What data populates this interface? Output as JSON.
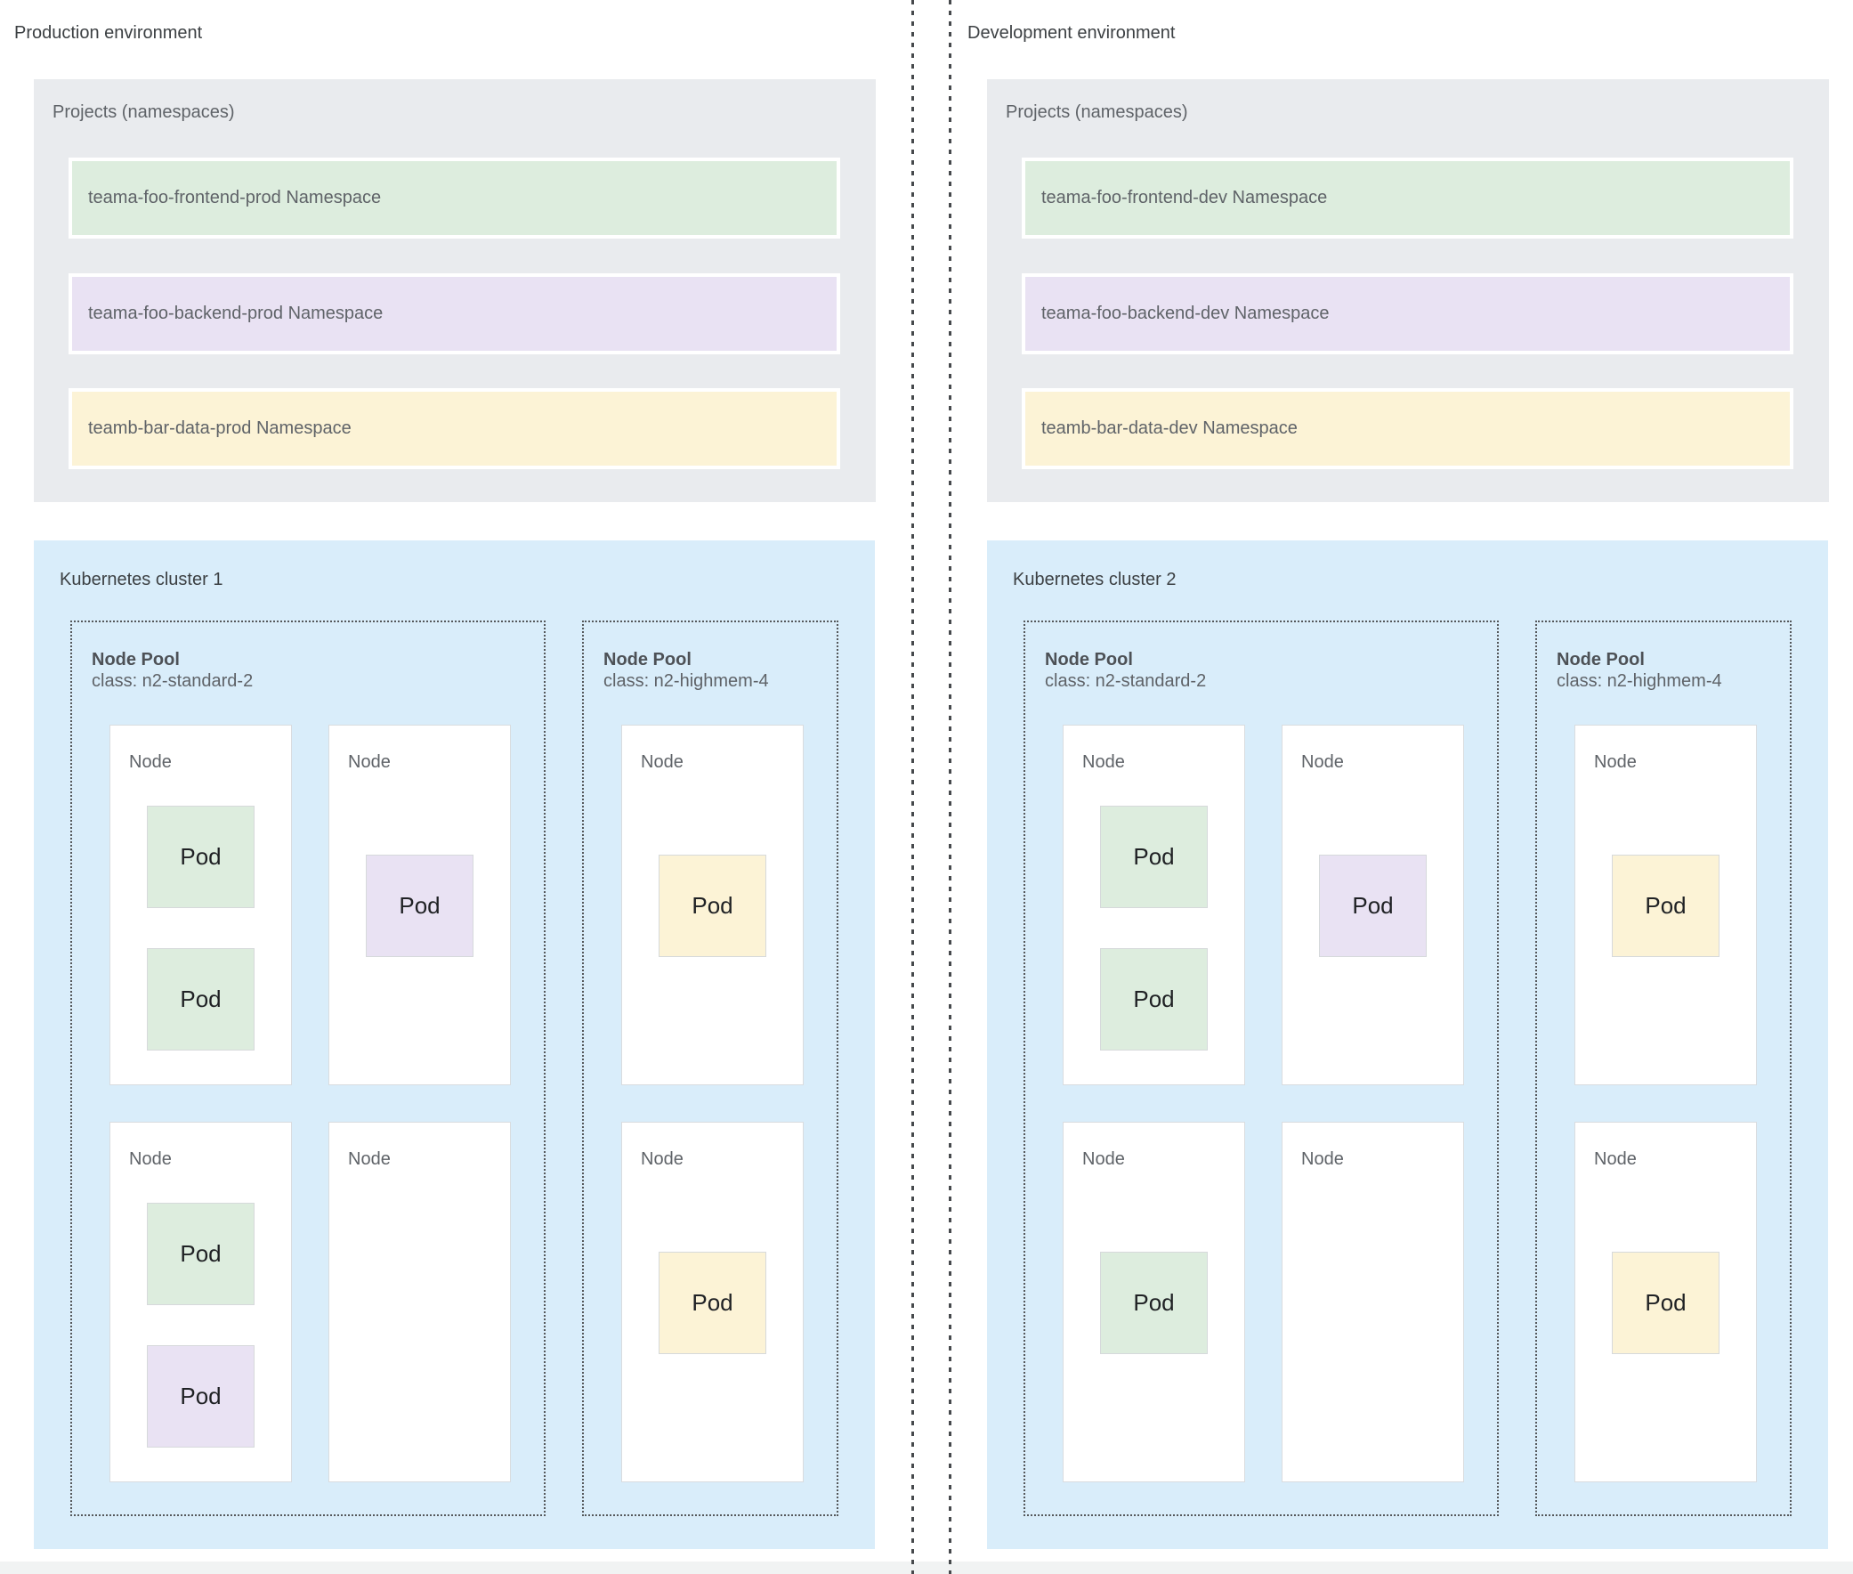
{
  "colors": {
    "frontend": "#ddedde",
    "backend": "#e9e2f3",
    "data": "#fcf3d6",
    "cluster_bg": "#d9edfa",
    "panel_bg": "#e9ebee"
  },
  "environments": [
    {
      "title": "Production environment",
      "projects_label": "Projects (namespaces)",
      "namespaces": [
        {
          "label": "teama-foo-frontend-prod Namespace",
          "color": "frontend"
        },
        {
          "label": "teama-foo-backend-prod Namespace",
          "color": "backend"
        },
        {
          "label": "teamb-bar-data-prod Namespace",
          "color": "data"
        }
      ],
      "cluster": {
        "title": "Kubernetes cluster 1",
        "node_pools": [
          {
            "name": "Node Pool",
            "class_line": "class: n2-standard-2",
            "nodes": [
              {
                "label": "Node",
                "pods": [
                  {
                    "label": "Pod",
                    "color": "frontend",
                    "slot": "top"
                  },
                  {
                    "label": "Pod",
                    "color": "frontend",
                    "slot": "bottom"
                  }
                ]
              },
              {
                "label": "Node",
                "pods": [
                  {
                    "label": "Pod",
                    "color": "backend",
                    "slot": "center"
                  }
                ]
              },
              {
                "label": "Node",
                "pods": [
                  {
                    "label": "Pod",
                    "color": "frontend",
                    "slot": "top"
                  },
                  {
                    "label": "Pod",
                    "color": "backend",
                    "slot": "bottom"
                  }
                ]
              },
              {
                "label": "Node",
                "pods": []
              }
            ]
          },
          {
            "name": "Node Pool",
            "class_line": "class: n2-highmem-4",
            "nodes": [
              {
                "label": "Node",
                "pods": [
                  {
                    "label": "Pod",
                    "color": "data",
                    "slot": "center"
                  }
                ]
              },
              {
                "label": "Node",
                "pods": [
                  {
                    "label": "Pod",
                    "color": "data",
                    "slot": "center"
                  }
                ]
              }
            ]
          }
        ]
      }
    },
    {
      "title": "Development environment",
      "projects_label": "Projects (namespaces)",
      "namespaces": [
        {
          "label": "teama-foo-frontend-dev Namespace",
          "color": "frontend"
        },
        {
          "label": "teama-foo-backend-dev Namespace",
          "color": "backend"
        },
        {
          "label": "teamb-bar-data-dev Namespace",
          "color": "data"
        }
      ],
      "cluster": {
        "title": "Kubernetes cluster 2",
        "node_pools": [
          {
            "name": "Node Pool",
            "class_line": "class: n2-standard-2",
            "nodes": [
              {
                "label": "Node",
                "pods": [
                  {
                    "label": "Pod",
                    "color": "frontend",
                    "slot": "top"
                  },
                  {
                    "label": "Pod",
                    "color": "frontend",
                    "slot": "bottom"
                  }
                ]
              },
              {
                "label": "Node",
                "pods": [
                  {
                    "label": "Pod",
                    "color": "backend",
                    "slot": "center"
                  }
                ]
              },
              {
                "label": "Node",
                "pods": [
                  {
                    "label": "Pod",
                    "color": "frontend",
                    "slot": "center"
                  }
                ]
              },
              {
                "label": "Node",
                "pods": []
              }
            ]
          },
          {
            "name": "Node Pool",
            "class_line": "class: n2-highmem-4",
            "nodes": [
              {
                "label": "Node",
                "pods": [
                  {
                    "label": "Pod",
                    "color": "data",
                    "slot": "center"
                  }
                ]
              },
              {
                "label": "Node",
                "pods": [
                  {
                    "label": "Pod",
                    "color": "data",
                    "slot": "center"
                  }
                ]
              }
            ]
          }
        ]
      }
    }
  ]
}
